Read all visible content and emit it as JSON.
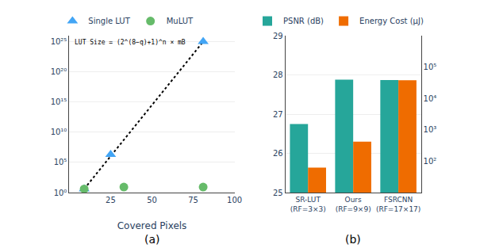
{
  "chart_data": [
    {
      "type": "scatter",
      "xlabel": "Covered Pixels",
      "caption": "(a)",
      "annotations": [
        "LUT Size = (2^(8−q)+1)^n × mB"
      ],
      "series": [
        {
          "type": "line",
          "line_style": "dotted",
          "color": "#000000",
          "x": [
            9,
            81
          ],
          "values": [
            4,
            1e+25
          ]
        },
        {
          "name": "Single LUT",
          "marker": "triangle-up",
          "color": "#42A5F5",
          "x": [
            9,
            25,
            81
          ],
          "values": [
            4,
            2000000,
            1e+25
          ]
        },
        {
          "name": "MuLUT",
          "marker": "circle",
          "color": "#66BB6A",
          "x": [
            9,
            33,
            81
          ],
          "values": [
            4,
            8,
            8
          ]
        }
      ],
      "log": "y",
      "xlim": [
        0,
        100
      ],
      "xticks": [
        25,
        50,
        75,
        100
      ],
      "ylim": [
        1,
        1e+26
      ],
      "yticks": [
        {
          "value": 1,
          "label": "10⁰"
        },
        {
          "value": 100000.0,
          "label": "10⁵"
        },
        {
          "value": 10000000000.0,
          "label": "10¹⁰"
        },
        {
          "value": 1000000000000000.0,
          "label": "10¹⁵"
        },
        {
          "value": 1e+20,
          "label": "10²⁰"
        },
        {
          "value": 1e+25,
          "label": "10²⁵"
        }
      ],
      "grid": true,
      "legend": "top"
    },
    {
      "type": "bar",
      "caption": "(b)",
      "categories": [
        "SR-LUT\n(RF=3×3)",
        "Ours\n(RF=9×9)",
        "FSRCNN\n(RF=17×17)"
      ],
      "series": [
        {
          "name": "PSNR (dB)",
          "color": "#26A69A",
          "values": [
            26.75,
            27.88,
            27.87
          ]
        },
        {
          "name": "Energy Cost (μJ)",
          "color": "#EF6C00",
          "values": [
            62,
            420,
            38000
          ],
          "axis": "y2"
        }
      ],
      "ylim": [
        25,
        29
      ],
      "yticks": [
        25,
        26,
        27,
        28,
        29
      ],
      "log": "y2",
      "y2lim": [
        10,
        1000000
      ],
      "y2ticks": [
        {
          "value": 100,
          "label": "10²"
        },
        {
          "value": 1000,
          "label": "10³"
        },
        {
          "value": 10000,
          "label": "10⁴"
        },
        {
          "value": 100000,
          "label": "10⁵"
        }
      ],
      "grid": true,
      "legend": "top"
    }
  ]
}
